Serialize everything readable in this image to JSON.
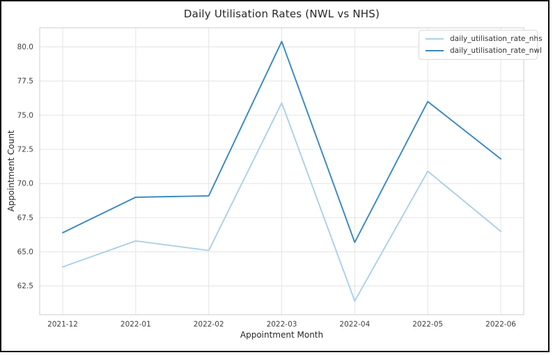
{
  "window": {
    "border_color": "#0a0a0a",
    "background": "#ffffff"
  },
  "chart_data": {
    "type": "line",
    "title": "Daily Utilisation Rates (NWL vs NHS)",
    "xlabel": "Appointment Month",
    "ylabel": "Appointment Count",
    "x": [
      "2021-12",
      "2022-01",
      "2022-02",
      "2022-03",
      "2022-04",
      "2022-05",
      "2022-06"
    ],
    "series": [
      {
        "name": "daily_utilisation_rate_nhs",
        "color": "#abd0e6",
        "values": [
          63.9,
          65.8,
          65.1,
          75.9,
          61.4,
          70.9,
          66.5
        ]
      },
      {
        "name": "daily_utilisation_rate_nwl",
        "color": "#3787c0",
        "values": [
          66.4,
          69.0,
          69.1,
          80.4,
          65.7,
          76.0,
          71.8
        ]
      }
    ],
    "yticks": [
      62.5,
      65.0,
      67.5,
      70.0,
      72.5,
      75.0,
      77.5,
      80.0
    ],
    "ylim": [
      60.4,
      81.4
    ],
    "grid": true,
    "grid_color": "#e4e4e4",
    "plot_border_color": "#d5d5d5",
    "legend_position": "upper right"
  }
}
